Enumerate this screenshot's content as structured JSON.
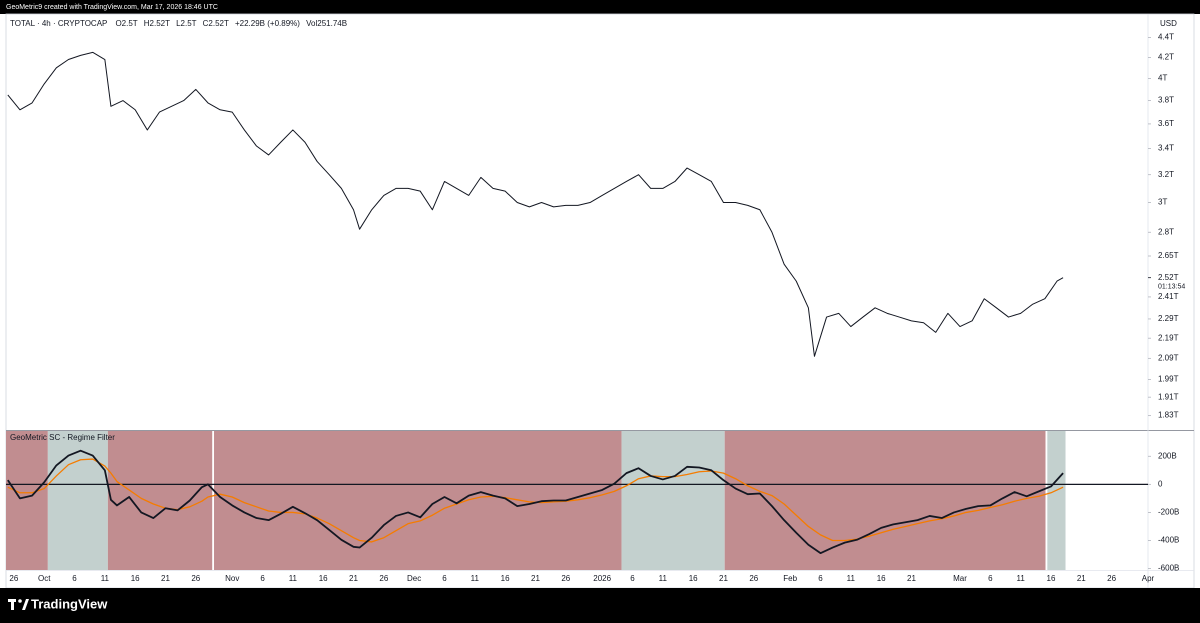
{
  "header": {
    "attribution": "GeoMetric9 created with TradingView.com, Mar 17, 2026 18:46 UTC"
  },
  "footer": {
    "brand": "TradingView"
  },
  "chart_data": [
    {
      "type": "line",
      "title": "TOTAL · 4h · CRYPTOCAP",
      "ohlc_labels": [
        "O2.5T",
        "H2.52T",
        "L2.5T",
        "C2.52T",
        "+22.29B (+0.89%)",
        "Vol251.74B"
      ],
      "currency": "USD",
      "log_scale": true,
      "grid": false,
      "color": "#131722",
      "xlim": [
        -1.3,
        187
      ],
      "ylim": [
        1.77,
        4.56
      ],
      "yticks": [
        {
          "value": 4.4,
          "label": "4.4T"
        },
        {
          "value": 4.2,
          "label": "4.2T"
        },
        {
          "value": 4,
          "label": "4T"
        },
        {
          "value": 3.8,
          "label": "3.8T"
        },
        {
          "value": 3.6,
          "label": "3.6T"
        },
        {
          "value": 3.4,
          "label": "3.4T"
        },
        {
          "value": 3.2,
          "label": "3.2T"
        },
        {
          "value": 3,
          "label": "3T"
        },
        {
          "value": 2.8,
          "label": "2.8T"
        },
        {
          "value": 2.65,
          "label": "2.65T"
        },
        {
          "value": 2.41,
          "label": "2.41T"
        },
        {
          "value": 2.29,
          "label": "2.29T"
        },
        {
          "value": 2.19,
          "label": "2.19T"
        },
        {
          "value": 2.09,
          "label": "2.09T"
        },
        {
          "value": 1.99,
          "label": "1.99T"
        },
        {
          "value": 1.91,
          "label": "1.91T"
        },
        {
          "value": 1.83,
          "label": "1.83T"
        }
      ],
      "last_price": {
        "value": 2.52,
        "label": "2.52T",
        "countdown": "01:13:54"
      },
      "x": [
        -1,
        1,
        3,
        5,
        7,
        9,
        11,
        13,
        15,
        16,
        18,
        20,
        22,
        24,
        26,
        28,
        30,
        32,
        34,
        36,
        38,
        40,
        42,
        44,
        46,
        48,
        50,
        52,
        54,
        56,
        57,
        59,
        61,
        63,
        65,
        67,
        69,
        71,
        73,
        75,
        77,
        79,
        81,
        83,
        85,
        87,
        89,
        91,
        93,
        95,
        97,
        99,
        101,
        103,
        105,
        107,
        109,
        111,
        113,
        115,
        117,
        119,
        121,
        123,
        125,
        127,
        129,
        131,
        132,
        134,
        136,
        138,
        140,
        142,
        144,
        146,
        148,
        150,
        152,
        154,
        156,
        158,
        160,
        162,
        164,
        166,
        168,
        170,
        172,
        173
      ],
      "values": [
        3.85,
        3.72,
        3.78,
        3.95,
        4.1,
        4.18,
        4.22,
        4.25,
        4.18,
        3.75,
        3.8,
        3.72,
        3.55,
        3.7,
        3.75,
        3.8,
        3.9,
        3.78,
        3.72,
        3.7,
        3.55,
        3.42,
        3.35,
        3.45,
        3.55,
        3.45,
        3.3,
        3.2,
        3.1,
        2.95,
        2.82,
        2.95,
        3.05,
        3.1,
        3.1,
        3.08,
        2.95,
        3.15,
        3.1,
        3.05,
        3.18,
        3.1,
        3.08,
        3.0,
        2.97,
        3.0,
        2.97,
        2.98,
        2.98,
        3.0,
        3.05,
        3.1,
        3.15,
        3.2,
        3.1,
        3.1,
        3.15,
        3.25,
        3.2,
        3.15,
        3.0,
        3.0,
        2.98,
        2.95,
        2.8,
        2.6,
        2.5,
        2.35,
        2.1,
        2.3,
        2.32,
        2.25,
        2.3,
        2.35,
        2.32,
        2.3,
        2.28,
        2.27,
        2.22,
        2.32,
        2.25,
        2.28,
        2.4,
        2.35,
        2.3,
        2.32,
        2.37,
        2.4,
        2.5,
        2.52
      ]
    },
    {
      "type": "line",
      "title": "GeoMetric SC - Regime Filter",
      "grid": false,
      "xlim": [
        -1.3,
        187
      ],
      "ylim": [
        -610,
        380
      ],
      "yticks": [
        {
          "value": 200,
          "label": "200B"
        },
        0,
        {
          "value": -200,
          "label": "-200B"
        },
        {
          "value": -400,
          "label": "-400B"
        },
        {
          "value": -600,
          "label": "-600B"
        }
      ],
      "xticks": [
        {
          "value": 0,
          "label": "26"
        },
        {
          "value": 5,
          "label": "Oct"
        },
        {
          "value": 10,
          "label": "6"
        },
        {
          "value": 15,
          "label": "11"
        },
        {
          "value": 20,
          "label": "16"
        },
        {
          "value": 25,
          "label": "21"
        },
        {
          "value": 30,
          "label": "26"
        },
        {
          "value": 36,
          "label": "Nov"
        },
        {
          "value": 41,
          "label": "6"
        },
        {
          "value": 46,
          "label": "11"
        },
        {
          "value": 51,
          "label": "16"
        },
        {
          "value": 56,
          "label": "21"
        },
        {
          "value": 61,
          "label": "26"
        },
        {
          "value": 66,
          "label": "Dec"
        },
        {
          "value": 71,
          "label": "6"
        },
        {
          "value": 76,
          "label": "11"
        },
        {
          "value": 81,
          "label": "16"
        },
        {
          "value": 86,
          "label": "21"
        },
        {
          "value": 91,
          "label": "26"
        },
        {
          "value": 97,
          "label": "2026"
        },
        {
          "value": 102,
          "label": "6"
        },
        {
          "value": 107,
          "label": "11"
        },
        {
          "value": 112,
          "label": "16"
        },
        {
          "value": 117,
          "label": "21"
        },
        {
          "value": 122,
          "label": "26"
        },
        {
          "value": 128,
          "label": "Feb"
        },
        {
          "value": 133,
          "label": "6"
        },
        {
          "value": 138,
          "label": "11"
        },
        {
          "value": 143,
          "label": "16"
        },
        {
          "value": 148,
          "label": "21"
        },
        {
          "value": 156,
          "label": "Mar"
        },
        {
          "value": 161,
          "label": "6"
        },
        {
          "value": 166,
          "label": "11"
        },
        {
          "value": 171,
          "label": "16"
        },
        {
          "value": 176,
          "label": "21"
        },
        {
          "value": 181,
          "label": "26"
        },
        {
          "value": 187,
          "label": "Apr"
        }
      ],
      "regimes": [
        {
          "start": -1.3,
          "end": 5.6,
          "color": "#c18d90"
        },
        {
          "start": 5.6,
          "end": 15.5,
          "color": "#c3d0ce"
        },
        {
          "start": 15.5,
          "end": 32.7,
          "color": "#c18d90"
        },
        {
          "start": 33,
          "end": 100.2,
          "color": "#c18d90"
        },
        {
          "start": 100.2,
          "end": 117.2,
          "color": "#c3d0ce"
        },
        {
          "start": 117.2,
          "end": 170.1,
          "color": "#c18d90"
        },
        {
          "start": 170.4,
          "end": 173.4,
          "color": "#c3d0ce"
        }
      ],
      "x": [
        -1,
        1,
        3,
        5,
        7,
        9,
        11,
        13,
        15,
        16,
        17,
        19,
        21,
        23,
        25,
        27,
        29,
        31,
        32,
        34,
        36,
        38,
        40,
        42,
        44,
        46,
        48,
        50,
        52,
        54,
        56,
        57,
        59,
        61,
        63,
        65,
        67,
        69,
        71,
        73,
        75,
        77,
        79,
        81,
        83,
        85,
        87,
        89,
        91,
        93,
        95,
        97,
        99,
        101,
        103,
        105,
        107,
        109,
        111,
        113,
        115,
        117,
        119,
        121,
        123,
        125,
        127,
        129,
        131,
        133,
        135,
        137,
        139,
        141,
        143,
        145,
        147,
        149,
        151,
        153,
        155,
        157,
        159,
        161,
        163,
        165,
        167,
        169,
        171,
        173
      ],
      "series": [
        {
          "color": "#131722",
          "values": [
            30,
            -100,
            -80,
            15,
            135,
            205,
            240,
            205,
            100,
            -110,
            -150,
            -90,
            -200,
            -240,
            -170,
            -185,
            -115,
            -20,
            0,
            -90,
            -150,
            -200,
            -240,
            -255,
            -210,
            -160,
            -205,
            -255,
            -325,
            -395,
            -445,
            -450,
            -380,
            -290,
            -225,
            -200,
            -235,
            -140,
            -90,
            -135,
            -80,
            -55,
            -80,
            -100,
            -155,
            -140,
            -120,
            -115,
            -115,
            -90,
            -65,
            -40,
            5,
            80,
            115,
            60,
            35,
            60,
            125,
            120,
            100,
            30,
            -30,
            -70,
            -65,
            -155,
            -255,
            -345,
            -430,
            -490,
            -450,
            -415,
            -395,
            -355,
            -310,
            -285,
            -270,
            -255,
            -225,
            -240,
            -200,
            -175,
            -155,
            -150,
            -100,
            -55,
            -85,
            -50,
            -15,
            80
          ]
        },
        {
          "color": "#f57c00",
          "values": [
            -20,
            -60,
            -60,
            -30,
            60,
            140,
            175,
            180,
            130,
            80,
            20,
            -40,
            -100,
            -140,
            -170,
            -180,
            -160,
            -120,
            -90,
            -70,
            -90,
            -130,
            -160,
            -190,
            -200,
            -200,
            -210,
            -240,
            -280,
            -330,
            -380,
            -400,
            -410,
            -380,
            -330,
            -280,
            -260,
            -220,
            -170,
            -140,
            -110,
            -90,
            -85,
            -95,
            -110,
            -125,
            -130,
            -125,
            -120,
            -110,
            -95,
            -75,
            -50,
            -10,
            40,
            60,
            55,
            55,
            70,
            90,
            95,
            80,
            40,
            -10,
            -50,
            -80,
            -140,
            -220,
            -300,
            -360,
            -400,
            -400,
            -390,
            -370,
            -345,
            -320,
            -300,
            -280,
            -260,
            -245,
            -225,
            -200,
            -185,
            -165,
            -145,
            -120,
            -100,
            -85,
            -60,
            -20
          ]
        }
      ]
    }
  ]
}
